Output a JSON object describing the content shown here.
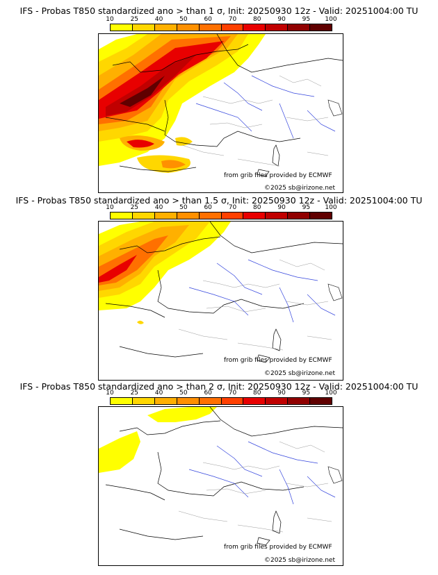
{
  "colorbar": {
    "ticks": [
      "10",
      "25",
      "40",
      "50",
      "60",
      "70",
      "80",
      "90",
      "95",
      "100"
    ],
    "colors": [
      "#ffff00",
      "#ffd700",
      "#ffb000",
      "#ff9000",
      "#ff7000",
      "#ff4000",
      "#e80000",
      "#c00000",
      "#900000",
      "#600000"
    ]
  },
  "panels": [
    {
      "title": "IFS - Probas T850  standardized ano > than 1 σ, Init: 20250930 12z - Valid: 20251004:00 TU",
      "credit_source": "from grib files provided by ECMWF",
      "credit_copyright": "©2025 sb@irizone.net"
    },
    {
      "title": "IFS - Probas T850  standardized ano > than 1.5 σ, Init: 20250930 12z - Valid: 20251004:00 TU",
      "credit_source": "from grib files provided by ECMWF",
      "credit_copyright": "©2025 sb@irizone.net"
    },
    {
      "title": "IFS - Probas T850  standardized ano > than 2 σ, Init: 20250930 12z - Valid: 20251004:00 TU",
      "credit_source": "from grib files provided by ECMWF",
      "credit_copyright": "©2025 sb@irizone.net"
    }
  ]
}
